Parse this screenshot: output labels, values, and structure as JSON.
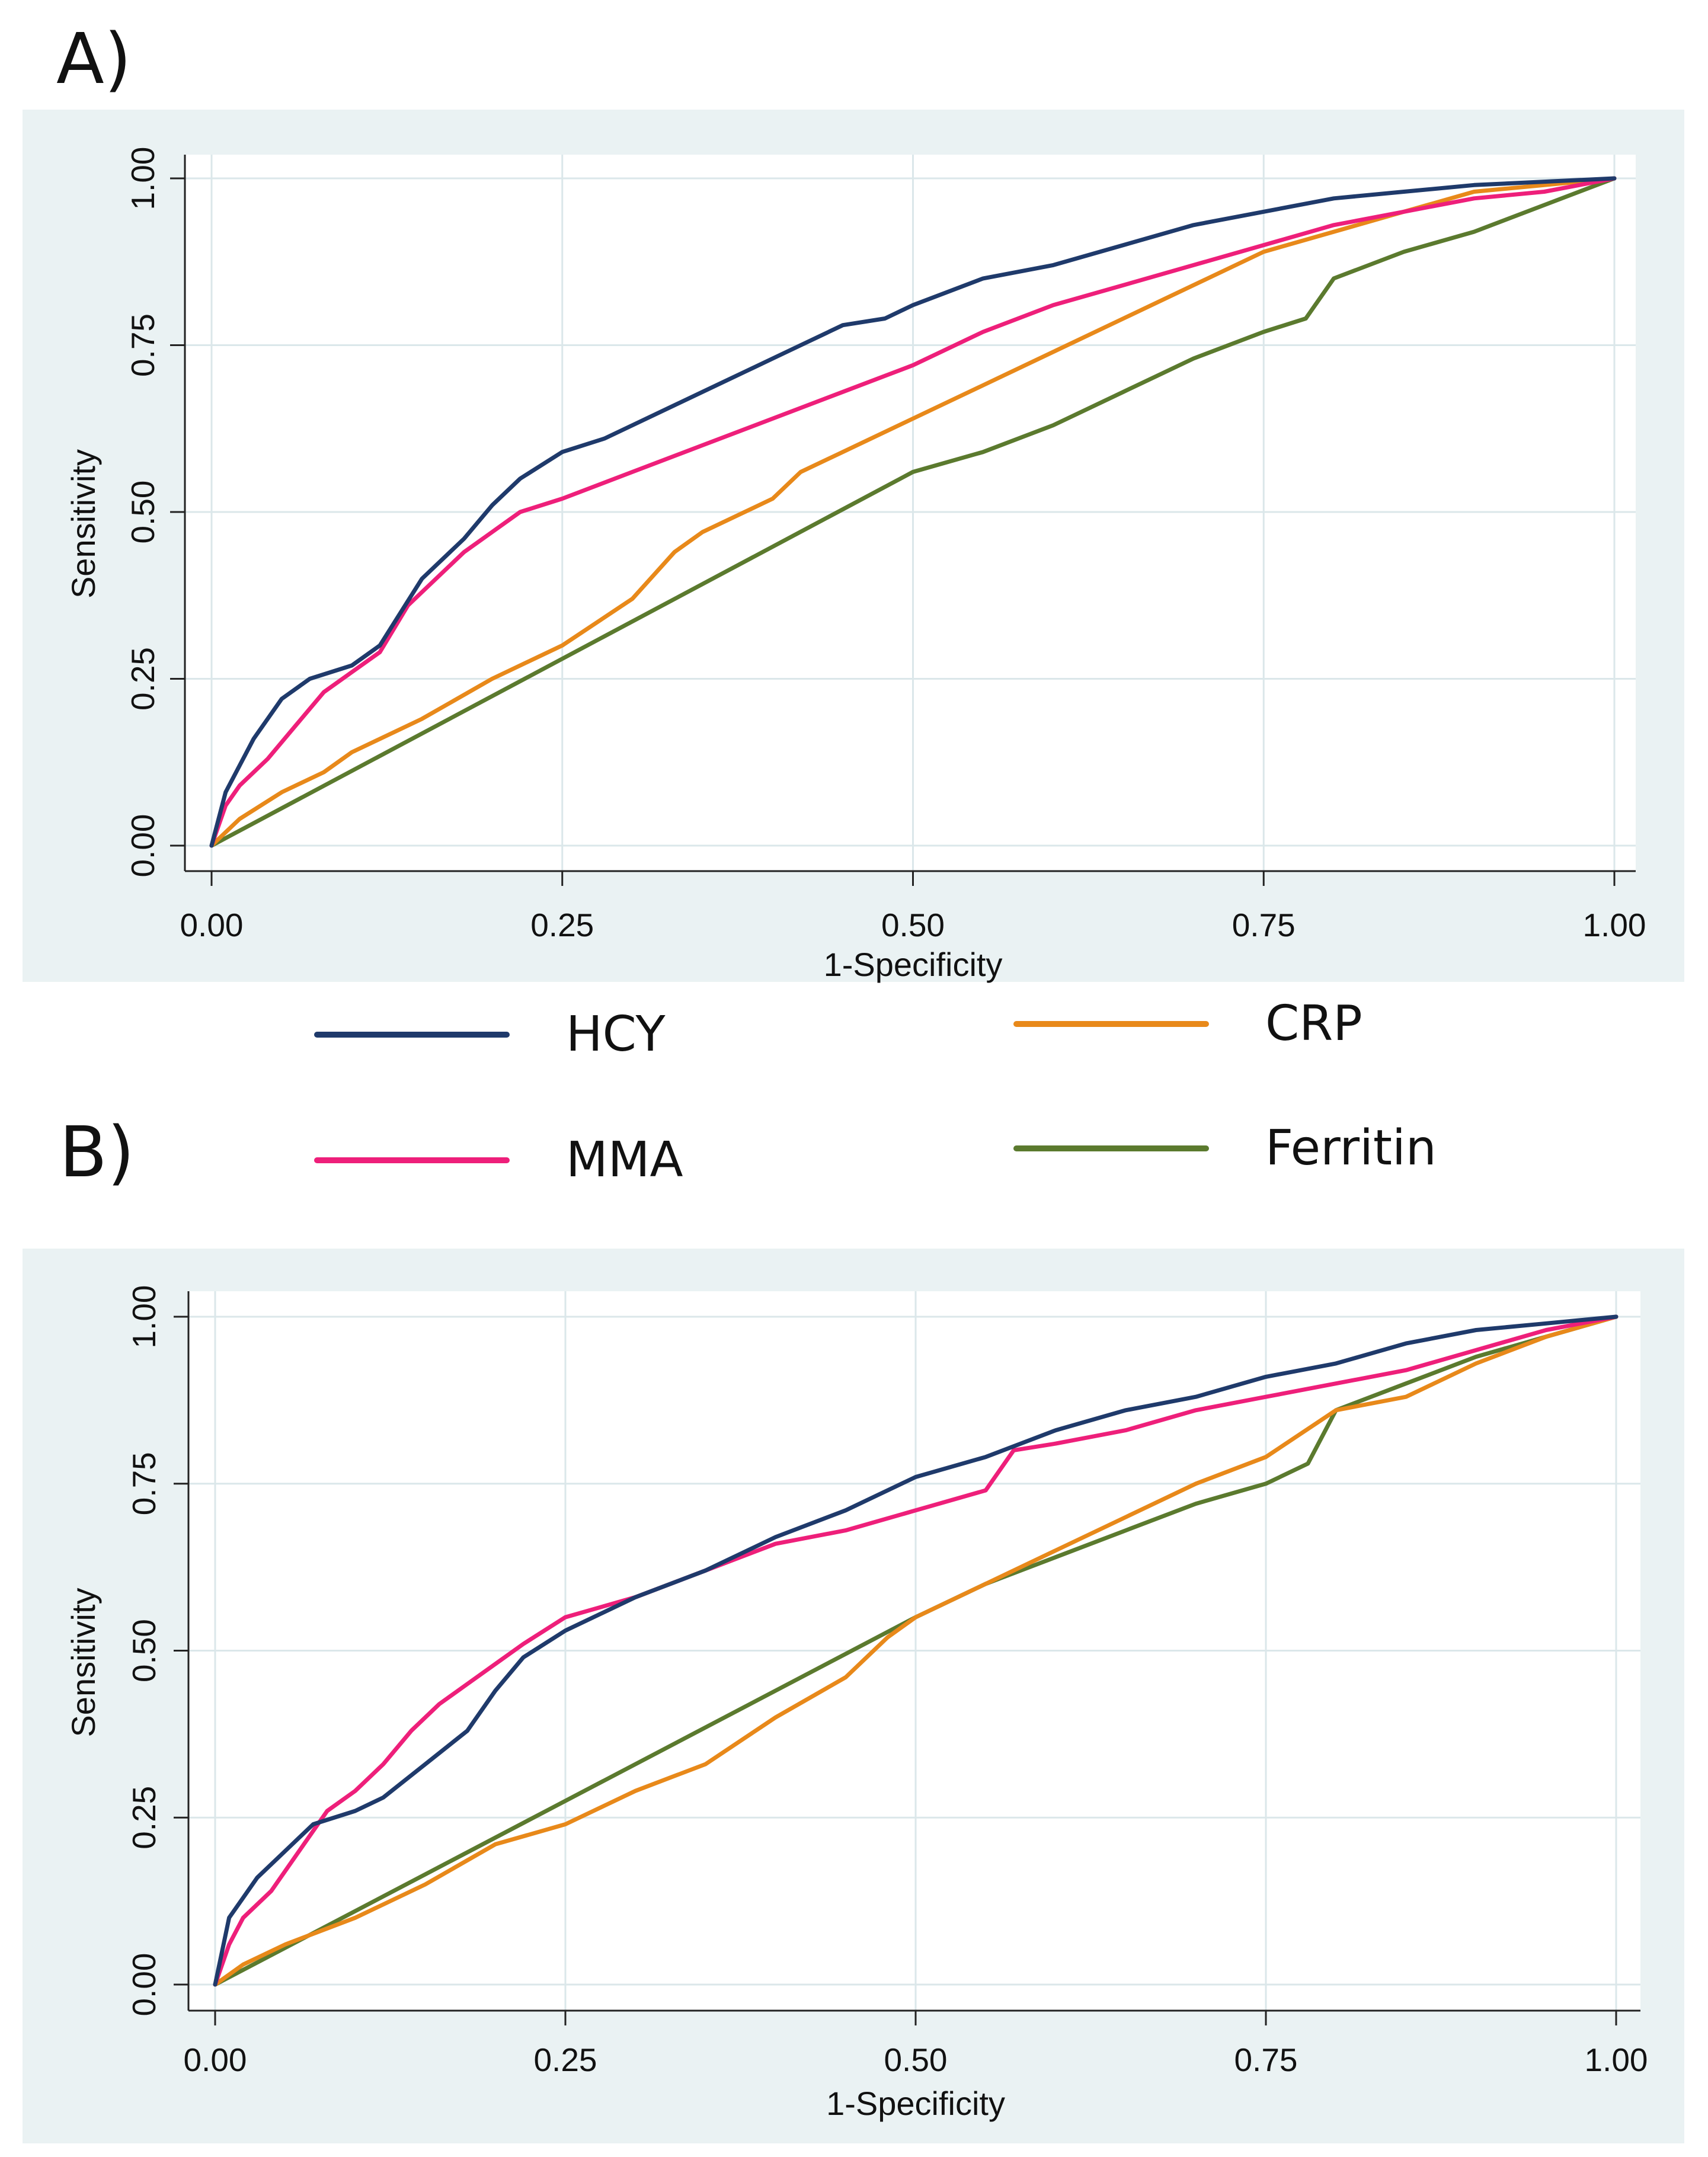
{
  "panels": {
    "a_label": "A)",
    "b_label": "B)"
  },
  "colors": {
    "panel_bg": "#eaf2f3",
    "grid": "#dbe7ea",
    "axis": "#222222",
    "hcy": "#1f3a6b",
    "mma": "#ee1f7a",
    "crp": "#e8891a",
    "ferritin": "#5b7a2e"
  },
  "legend": {
    "hcy": "HCY",
    "mma": "MMA",
    "crp": "CRP",
    "ferritin": "Ferritin"
  },
  "chart_data": [
    {
      "type": "line",
      "panel": "A)",
      "title": "",
      "xlabel": "1-Specificity",
      "ylabel": "Sensitivity",
      "xlim": [
        0,
        1
      ],
      "ylim": [
        0,
        1
      ],
      "xticks": [
        "0.00",
        "0.25",
        "0.50",
        "0.75",
        "1.00"
      ],
      "yticks": [
        "0.00",
        "0.25",
        "0.50",
        "0.75",
        "1.00"
      ],
      "grid": true,
      "series": [
        {
          "name": "HCY",
          "x": [
            0,
            0.01,
            0.02,
            0.03,
            0.05,
            0.07,
            0.1,
            0.12,
            0.15,
            0.18,
            0.2,
            0.22,
            0.25,
            0.28,
            0.3,
            0.33,
            0.35,
            0.38,
            0.4,
            0.42,
            0.45,
            0.48,
            0.5,
            0.55,
            0.6,
            0.65,
            0.7,
            0.75,
            0.8,
            0.85,
            0.9,
            0.95,
            1
          ],
          "y": [
            0,
            0.08,
            0.12,
            0.16,
            0.22,
            0.25,
            0.27,
            0.3,
            0.4,
            0.46,
            0.51,
            0.55,
            0.59,
            0.61,
            0.63,
            0.66,
            0.68,
            0.71,
            0.73,
            0.75,
            0.78,
            0.79,
            0.81,
            0.85,
            0.87,
            0.9,
            0.93,
            0.95,
            0.97,
            0.98,
            0.99,
            0.995,
            1
          ]
        },
        {
          "name": "MMA",
          "x": [
            0,
            0.01,
            0.02,
            0.04,
            0.06,
            0.08,
            0.1,
            0.12,
            0.14,
            0.16,
            0.18,
            0.2,
            0.22,
            0.25,
            0.3,
            0.35,
            0.4,
            0.45,
            0.5,
            0.55,
            0.6,
            0.65,
            0.7,
            0.75,
            0.8,
            0.85,
            0.9,
            0.95,
            1
          ],
          "y": [
            0,
            0.06,
            0.09,
            0.13,
            0.18,
            0.23,
            0.26,
            0.29,
            0.36,
            0.4,
            0.44,
            0.47,
            0.5,
            0.52,
            0.56,
            0.6,
            0.64,
            0.68,
            0.72,
            0.77,
            0.81,
            0.84,
            0.87,
            0.9,
            0.93,
            0.95,
            0.97,
            0.98,
            1
          ]
        },
        {
          "name": "CRP",
          "x": [
            0,
            0.02,
            0.05,
            0.08,
            0.1,
            0.15,
            0.2,
            0.25,
            0.3,
            0.33,
            0.35,
            0.4,
            0.42,
            0.45,
            0.5,
            0.55,
            0.6,
            0.65,
            0.7,
            0.75,
            0.8,
            0.85,
            0.9,
            0.95,
            1
          ],
          "y": [
            0,
            0.04,
            0.08,
            0.11,
            0.14,
            0.19,
            0.25,
            0.3,
            0.37,
            0.44,
            0.47,
            0.52,
            0.56,
            0.59,
            0.64,
            0.69,
            0.74,
            0.79,
            0.84,
            0.89,
            0.92,
            0.95,
            0.98,
            0.99,
            1
          ]
        },
        {
          "name": "Ferritin",
          "x": [
            0,
            0.5,
            0.55,
            0.6,
            0.65,
            0.7,
            0.75,
            0.78,
            0.8,
            0.85,
            0.9,
            0.95,
            1
          ],
          "y": [
            0,
            0.56,
            0.59,
            0.63,
            0.68,
            0.73,
            0.77,
            0.79,
            0.85,
            0.89,
            0.92,
            0.96,
            1
          ]
        }
      ]
    },
    {
      "type": "line",
      "panel": "B)",
      "title": "",
      "xlabel": "1-Specificity",
      "ylabel": "Sensitivity",
      "xlim": [
        0,
        1
      ],
      "ylim": [
        0,
        1
      ],
      "xticks": [
        "0.00",
        "0.25",
        "0.50",
        "0.75",
        "1.00"
      ],
      "yticks": [
        "0.00",
        "0.25",
        "0.50",
        "0.75",
        "1.00"
      ],
      "grid": true,
      "series": [
        {
          "name": "HCY",
          "x": [
            0,
            0.01,
            0.02,
            0.03,
            0.05,
            0.07,
            0.1,
            0.12,
            0.15,
            0.18,
            0.2,
            0.22,
            0.25,
            0.3,
            0.35,
            0.4,
            0.45,
            0.5,
            0.55,
            0.6,
            0.65,
            0.7,
            0.75,
            0.8,
            0.85,
            0.9,
            0.95,
            1
          ],
          "y": [
            0,
            0.1,
            0.13,
            0.16,
            0.2,
            0.24,
            0.26,
            0.28,
            0.33,
            0.38,
            0.44,
            0.49,
            0.53,
            0.58,
            0.62,
            0.67,
            0.71,
            0.76,
            0.79,
            0.83,
            0.86,
            0.88,
            0.91,
            0.93,
            0.96,
            0.98,
            0.99,
            1
          ]
        },
        {
          "name": "MMA",
          "x": [
            0,
            0.01,
            0.02,
            0.04,
            0.06,
            0.08,
            0.1,
            0.12,
            0.14,
            0.16,
            0.18,
            0.2,
            0.22,
            0.25,
            0.3,
            0.35,
            0.4,
            0.45,
            0.5,
            0.55,
            0.57,
            0.6,
            0.65,
            0.7,
            0.75,
            0.8,
            0.85,
            0.9,
            0.95,
            1
          ],
          "y": [
            0,
            0.06,
            0.1,
            0.14,
            0.2,
            0.26,
            0.29,
            0.33,
            0.38,
            0.42,
            0.45,
            0.48,
            0.51,
            0.55,
            0.58,
            0.62,
            0.66,
            0.68,
            0.71,
            0.74,
            0.8,
            0.81,
            0.83,
            0.86,
            0.88,
            0.9,
            0.92,
            0.95,
            0.98,
            1
          ]
        },
        {
          "name": "CRP",
          "x": [
            0,
            0.02,
            0.05,
            0.1,
            0.15,
            0.2,
            0.25,
            0.3,
            0.35,
            0.4,
            0.45,
            0.48,
            0.5,
            0.55,
            0.6,
            0.65,
            0.7,
            0.75,
            0.8,
            0.85,
            0.9,
            0.95,
            1
          ],
          "y": [
            0,
            0.03,
            0.06,
            0.1,
            0.15,
            0.21,
            0.24,
            0.29,
            0.33,
            0.4,
            0.46,
            0.52,
            0.55,
            0.6,
            0.65,
            0.7,
            0.75,
            0.79,
            0.86,
            0.88,
            0.93,
            0.97,
            1
          ]
        },
        {
          "name": "Ferritin",
          "x": [
            0,
            0.5,
            0.55,
            0.6,
            0.65,
            0.7,
            0.75,
            0.78,
            0.8,
            0.85,
            0.9,
            0.95,
            1
          ],
          "y": [
            0,
            0.55,
            0.6,
            0.64,
            0.68,
            0.72,
            0.75,
            0.78,
            0.86,
            0.9,
            0.94,
            0.97,
            1
          ]
        }
      ]
    }
  ]
}
